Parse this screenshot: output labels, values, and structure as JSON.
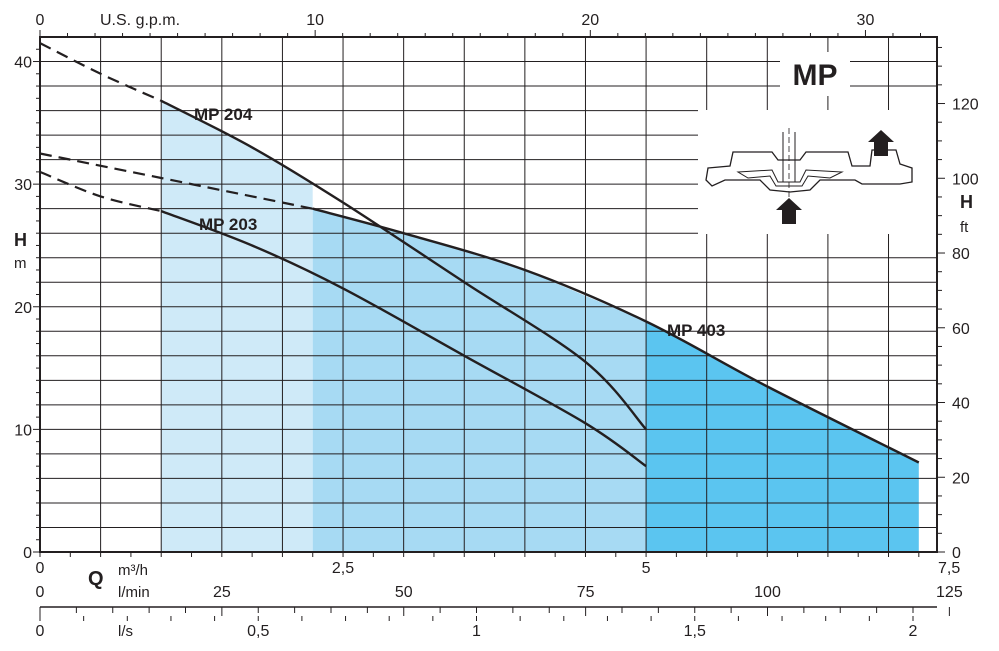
{
  "chart_data": {
    "type": "line",
    "title": "MP",
    "y_left": {
      "label": "H",
      "unit": "m",
      "ylim": [
        0,
        42
      ],
      "ticks": [
        0,
        10,
        20,
        30,
        40
      ]
    },
    "y_right": {
      "label": "H",
      "unit": "ft",
      "ylim": [
        0,
        137.8
      ],
      "ticks": [
        0,
        20,
        40,
        60,
        80,
        100,
        120
      ]
    },
    "x_gpm": {
      "label": "U.S. g.p.m.",
      "xlim": [
        0,
        32.6
      ],
      "ticks": [
        0,
        10,
        20,
        30
      ]
    },
    "x_m3h": {
      "label": "Q",
      "unit": "m³/h",
      "xlim": [
        0,
        7.4
      ],
      "ticks": [
        "0",
        "2,5",
        "5",
        "7,5"
      ]
    },
    "x_lmin": {
      "unit": "l/min",
      "xlim": [
        0,
        123.3
      ],
      "ticks": [
        "0",
        "25",
        "50",
        "75",
        "100",
        "125"
      ]
    },
    "x_ls": {
      "unit": "l/s",
      "xlim": [
        0,
        2.055
      ],
      "ticks": [
        "0",
        "0,5",
        "1",
        "1,5",
        "2"
      ]
    },
    "series": [
      {
        "name": "MP 204",
        "dashed": [
          [
            0,
            41.5
          ],
          [
            0.5,
            39.0
          ],
          [
            1.0,
            36.8
          ]
        ],
        "solid": [
          [
            1.0,
            36.8
          ],
          [
            1.75,
            33.0
          ],
          [
            2.5,
            28.5
          ],
          [
            3.5,
            22.0
          ],
          [
            4.5,
            15.5
          ],
          [
            5.0,
            10.0
          ]
        ],
        "fill": "#cfeaf8",
        "fill_from": 1.0,
        "fill_to": 2.25
      },
      {
        "name": "MP 203",
        "dashed": [
          [
            0,
            31.0
          ],
          [
            0.5,
            29.0
          ],
          [
            1.0,
            27.8
          ]
        ],
        "solid": [
          [
            1.0,
            27.8
          ],
          [
            1.75,
            25.0
          ],
          [
            2.5,
            21.5
          ],
          [
            3.5,
            16.0
          ],
          [
            4.5,
            10.5
          ],
          [
            5.0,
            7.0
          ]
        ]
      },
      {
        "name": "MP 403",
        "dashed": [
          [
            0,
            32.5
          ],
          [
            1.0,
            30.5
          ],
          [
            2.25,
            28.0
          ]
        ],
        "solid": [
          [
            2.25,
            28.0
          ],
          [
            3.0,
            26.0
          ],
          [
            4.0,
            23.0
          ],
          [
            5.0,
            18.8
          ],
          [
            6.0,
            13.5
          ],
          [
            7.25,
            7.3
          ]
        ],
        "fill": "#a7daf3",
        "fill_from": 2.25,
        "fill_to": 5.0,
        "fill_extra": "#5bc5f0",
        "fill_extra_from": 5.0,
        "fill_extra_to": 7.25
      }
    ],
    "grid": true
  },
  "labels": {
    "title": "MP",
    "gpm": "U.S. g.p.m.",
    "h_left": "H",
    "m_left": "m",
    "h_right": "H",
    "ft_right": "ft",
    "q": "Q",
    "m3h": "m³/h",
    "lmin": "l/min",
    "ls": "l/s",
    "mp204": "MP 204",
    "mp203": "MP 203",
    "mp403": "MP 403"
  },
  "colors": {
    "line": "#231f20",
    "fill_light": "#cfeaf8",
    "fill_mid": "#a7daf3",
    "fill_dark": "#5bc5f0"
  }
}
